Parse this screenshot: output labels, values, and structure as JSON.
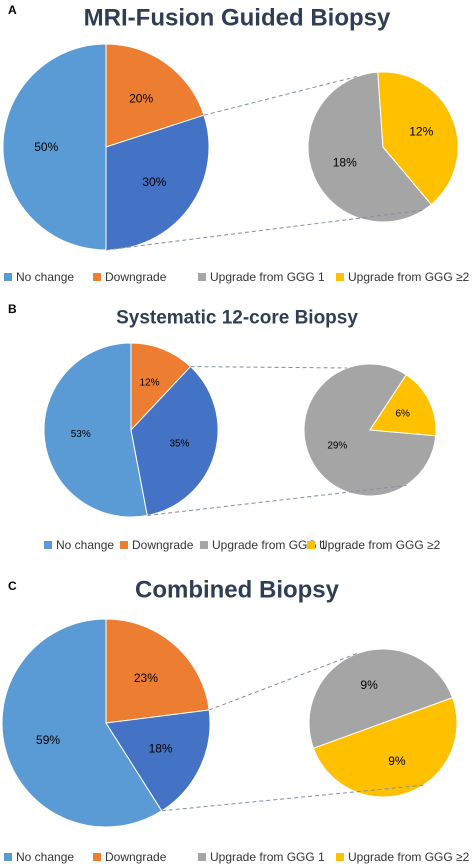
{
  "chart_data": [
    {
      "panel": "A",
      "type": "pie",
      "title": "MRI-Fusion Guided Biopsy",
      "slices": [
        {
          "name": "No change",
          "value": 50,
          "label": "50%"
        },
        {
          "name": "Downgrade",
          "value": 20,
          "label": "20%"
        },
        {
          "name": "Upgrade",
          "value": 30,
          "label": "30%"
        }
      ],
      "breakdown": [
        {
          "name": "Upgrade from GGG 1",
          "value": 18,
          "label": "18%"
        },
        {
          "name": "Upgrade from GGG ≥2",
          "value": 12,
          "label": "12%"
        }
      ],
      "legend": [
        "No change",
        "Downgrade",
        "Upgrade from GGG 1",
        "Upgrade from GGG ≥2"
      ],
      "legend_position": "bottom"
    },
    {
      "panel": "B",
      "type": "pie",
      "title": "Systematic 12-core Biopsy",
      "slices": [
        {
          "name": "No change",
          "value": 53,
          "label": "53%"
        },
        {
          "name": "Downgrade",
          "value": 12,
          "label": "12%"
        },
        {
          "name": "Upgrade",
          "value": 35,
          "label": "35%"
        }
      ],
      "breakdown": [
        {
          "name": "Upgrade from GGG 1",
          "value": 29,
          "label": "29%"
        },
        {
          "name": "Upgrade from GGG ≥2",
          "value": 6,
          "label": "6%"
        }
      ],
      "legend": [
        "No change",
        "Downgrade",
        "Upgrade from GGG 1",
        "Upgrade from GGG ≥2"
      ],
      "legend_position": "bottom"
    },
    {
      "panel": "C",
      "type": "pie",
      "title": "Combined Biopsy",
      "slices": [
        {
          "name": "No change",
          "value": 59,
          "label": "59%"
        },
        {
          "name": "Downgrade",
          "value": 23,
          "label": "23%"
        },
        {
          "name": "Upgrade",
          "value": 18,
          "label": "18%"
        }
      ],
      "breakdown": [
        {
          "name": "Upgrade from GGG 1",
          "value": 9,
          "label": "9%"
        },
        {
          "name": "Upgrade from GGG ≥2",
          "value": 9,
          "label": "9%"
        }
      ],
      "legend": [
        "No change",
        "Downgrade",
        "Upgrade from GGG 1",
        "Upgrade from GGG ≥2"
      ],
      "legend_position": "bottom"
    }
  ],
  "colors": {
    "No change": "#5b9bd5",
    "Downgrade": "#ed7d31",
    "Upgrade": "#4472c4",
    "Upgrade from GGG 1": "#a5a5a5",
    "Upgrade from GGG ≥2": "#ffc000",
    "title": "#2f3e55"
  }
}
